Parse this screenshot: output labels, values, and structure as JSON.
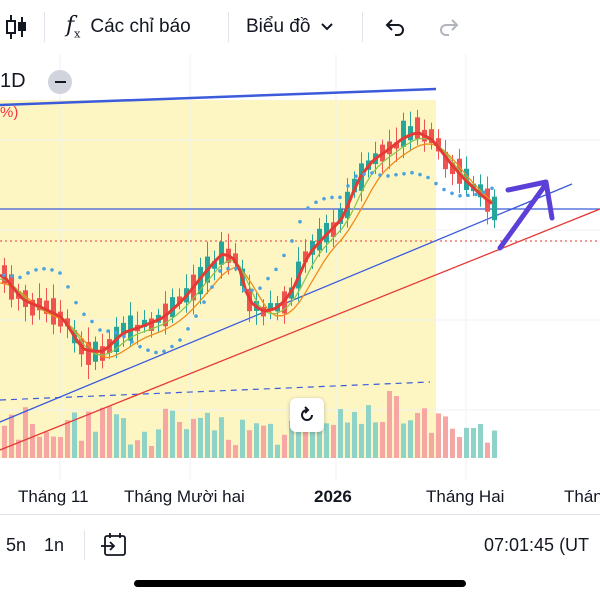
{
  "toolbar": {
    "indicators_label": "Các chỉ báo",
    "chart_type_label": "Biểu đồ"
  },
  "chart": {
    "timeframe": "1D",
    "percent_fragment": "%)",
    "x_labels": [
      "Tháng 11",
      "Tháng Mười hai",
      "2026",
      "Tháng Hai",
      "Tháng"
    ],
    "colors": {
      "up": "#26a69a",
      "down": "#ef5350",
      "highlight": "#fdf6c3",
      "trendline": "#3b5bdb",
      "support": "#e53935",
      "arrow": "#5b3fd6"
    }
  },
  "bottom": {
    "interval_5": "5n",
    "interval_1": "1n",
    "clock": "07:01:45 (UT"
  }
}
